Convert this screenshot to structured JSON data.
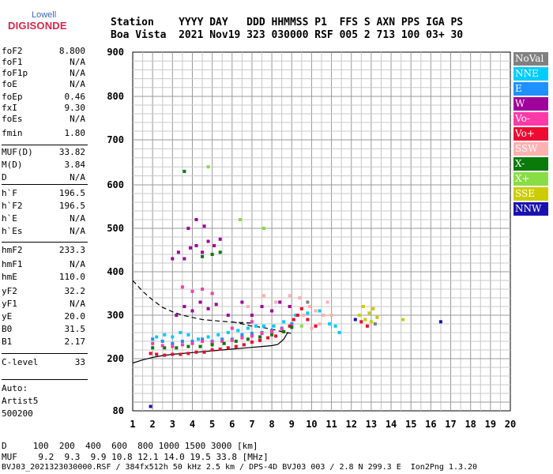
{
  "logo": {
    "top": "Lowell",
    "bottom": "DIGISONDE"
  },
  "header": {
    "line1": "Station    YYYY DAY   DDD HHMMSS P1  FFS S AXN PPS IGA PS",
    "line2": "Boa Vista  2021 Nov19 323 030000 RSF 005 2 713 100 03+ 30"
  },
  "params": [
    {
      "label": "foF2",
      "value": "8.800"
    },
    {
      "label": "foF1",
      "value": "N/A"
    },
    {
      "label": "foF1p",
      "value": "N/A"
    },
    {
      "label": "foE",
      "value": "N/A"
    },
    {
      "label": "foEp",
      "value": "0.46"
    },
    {
      "label": "fxI",
      "value": "9.30"
    },
    {
      "label": "foEs",
      "value": "N/A"
    },
    {
      "label": "fmin",
      "value": "1.80"
    },
    {
      "label": "MUF(D)",
      "value": "33.82"
    },
    {
      "label": "M(D)",
      "value": "3.84"
    },
    {
      "label": "D",
      "value": "N/A"
    },
    {
      "label": "h`F",
      "value": "196.5"
    },
    {
      "label": "h`F2",
      "value": "196.5"
    },
    {
      "label": "h`E",
      "value": "N/A"
    },
    {
      "label": "h`Es",
      "value": "N/A"
    },
    {
      "label": "hmF2",
      "value": "233.3"
    },
    {
      "label": "hmF1",
      "value": "N/A"
    },
    {
      "label": "hmE",
      "value": "110.0"
    },
    {
      "label": "yF2",
      "value": "32.2"
    },
    {
      "label": "yF1",
      "value": "N/A"
    },
    {
      "label": "yE",
      "value": "20.0"
    },
    {
      "label": "B0",
      "value": "31.5"
    },
    {
      "label": "B1",
      "value": "2.17"
    },
    {
      "label": "C-level",
      "value": "33"
    }
  ],
  "auto": {
    "line1": "Auto:",
    "line2": "Artist5",
    "line3": "500200"
  },
  "footer": {
    "d_line": "D     100  200  400  600  800 1000 1500 3000 [km]",
    "muf_line": "MUF    9.2  9.3  9.9 10.8 12.1 14.0 19.5 33.8 [MHz]",
    "file_line": "BVJ03_2021323030000.RSF / 384fx512h 50 kHz 2.5 km / DPS-4D BVJ03 003 / 2.8 N 299.3 E  Ion2Png 1.3.20"
  },
  "legend": [
    {
      "label": "NoVal",
      "color": "#808080"
    },
    {
      "label": "NNE",
      "color": "#00ccff"
    },
    {
      "label": "E",
      "color": "#1e90ff"
    },
    {
      "label": "W",
      "color": "#a0009c"
    },
    {
      "label": "Vo-",
      "color": "#ff3aa8"
    },
    {
      "label": "Vo+",
      "color": "#ee0a30"
    },
    {
      "label": "SSW",
      "color": "#ffb0b0"
    },
    {
      "label": "X-",
      "color": "#0a7a0a"
    },
    {
      "label": "X+",
      "color": "#88dd44"
    },
    {
      "label": "SSE",
      "color": "#cccc00"
    },
    {
      "label": "NNW",
      "color": "#1a12b0"
    }
  ],
  "chart_data": {
    "type": "scatter",
    "x_ticks": [
      "1",
      "2",
      "3",
      "4",
      "5",
      "6",
      "7",
      "8",
      "9",
      "10",
      "11",
      "12",
      "13",
      "14",
      "15",
      "16",
      "17",
      "18",
      "19",
      "20"
    ],
    "y_ticks": [
      "80",
      "200",
      "300",
      "400",
      "500",
      "600",
      "700",
      "800",
      "900"
    ],
    "xlim": [
      1,
      20
    ],
    "ylim": [
      80,
      900
    ],
    "grid": true,
    "legend_position": "right",
    "series": [
      {
        "name": "NNE",
        "points": [
          [
            2.2,
            250
          ],
          [
            2.6,
            255
          ],
          [
            3.0,
            250
          ],
          [
            3.4,
            260
          ],
          [
            3.8,
            255
          ],
          [
            4.3,
            245
          ],
          [
            4.8,
            250
          ],
          [
            5.3,
            255
          ],
          [
            5.8,
            260
          ],
          [
            6.3,
            265
          ],
          [
            6.8,
            270
          ],
          [
            7.2,
            275
          ],
          [
            7.6,
            275
          ],
          [
            8.1,
            275
          ],
          [
            8.6,
            285
          ],
          [
            9.2,
            300
          ],
          [
            9.8,
            305
          ],
          [
            10.4,
            310
          ],
          [
            10.9,
            280
          ],
          [
            11.2,
            275
          ],
          [
            11.4,
            260
          ]
        ]
      },
      {
        "name": "E",
        "points": [
          [
            2.0,
            245
          ],
          [
            2.5,
            240
          ],
          [
            3.0,
            235
          ],
          [
            3.5,
            240
          ],
          [
            4.0,
            240
          ],
          [
            4.5,
            245
          ],
          [
            5.0,
            240
          ],
          [
            5.5,
            245
          ],
          [
            6.0,
            245
          ],
          [
            6.5,
            255
          ],
          [
            7.0,
            258
          ],
          [
            7.5,
            260
          ],
          [
            8.0,
            265
          ],
          [
            8.5,
            270
          ],
          [
            9.0,
            280
          ]
        ]
      },
      {
        "name": "W",
        "points": [
          [
            3.0,
            430
          ],
          [
            3.3,
            445
          ],
          [
            3.6,
            430
          ],
          [
            3.9,
            455
          ],
          [
            4.2,
            460
          ],
          [
            4.5,
            445
          ],
          [
            4.8,
            470
          ],
          [
            5.1,
            460
          ],
          [
            5.4,
            475
          ],
          [
            3.2,
            300
          ],
          [
            3.6,
            320
          ],
          [
            4.0,
            310
          ],
          [
            4.4,
            330
          ],
          [
            4.8,
            315
          ],
          [
            5.2,
            325
          ],
          [
            5.8,
            300
          ],
          [
            3.8,
            500
          ],
          [
            4.2,
            520
          ],
          [
            4.6,
            505
          ],
          [
            6.5,
            330
          ],
          [
            7.0,
            300
          ],
          [
            7.5,
            320
          ],
          [
            8.0,
            310
          ],
          [
            8.4,
            330
          ],
          [
            8.9,
            320
          ]
        ]
      },
      {
        "name": "Vo-",
        "points": [
          [
            2.0,
            235
          ],
          [
            2.5,
            230
          ],
          [
            3.0,
            228
          ],
          [
            3.5,
            232
          ],
          [
            4.0,
            235
          ],
          [
            4.5,
            240
          ],
          [
            5.0,
            238
          ],
          [
            5.5,
            240
          ],
          [
            6.0,
            242
          ],
          [
            6.5,
            248
          ],
          [
            7.0,
            252
          ],
          [
            7.5,
            258
          ],
          [
            8.0,
            262
          ],
          [
            8.5,
            268
          ],
          [
            9.0,
            275
          ],
          [
            3.5,
            365
          ],
          [
            4.0,
            355
          ],
          [
            4.5,
            360
          ],
          [
            5.0,
            350
          ],
          [
            6.0,
            270
          ],
          [
            7.0,
            285
          ]
        ]
      },
      {
        "name": "Vo+",
        "points": [
          [
            1.9,
            212
          ],
          [
            2.2,
            210
          ],
          [
            2.6,
            208
          ],
          [
            3.0,
            210
          ],
          [
            3.4,
            210
          ],
          [
            3.8,
            212
          ],
          [
            4.2,
            215
          ],
          [
            4.6,
            215
          ],
          [
            5.0,
            220
          ],
          [
            5.4,
            222
          ],
          [
            5.8,
            225
          ],
          [
            6.2,
            228
          ],
          [
            6.6,
            232
          ],
          [
            7.0,
            238
          ],
          [
            7.4,
            242
          ],
          [
            7.8,
            248
          ],
          [
            8.2,
            252
          ],
          [
            8.6,
            262
          ],
          [
            8.9,
            275
          ],
          [
            9.1,
            290
          ],
          [
            9.3,
            300
          ],
          [
            9.5,
            315
          ],
          [
            9.8,
            290
          ],
          [
            10.2,
            275
          ],
          [
            12.5,
            285
          ],
          [
            12.8,
            275
          ]
        ]
      },
      {
        "name": "SSW",
        "points": [
          [
            9.6,
            300
          ],
          [
            9.9,
            320
          ],
          [
            10.2,
            310
          ],
          [
            10.4,
            280
          ],
          [
            10.6,
            300
          ],
          [
            10.8,
            330
          ],
          [
            11.0,
            300
          ],
          [
            10.0,
            270
          ],
          [
            9.4,
            340
          ],
          [
            8.9,
            345
          ],
          [
            8.2,
            330
          ],
          [
            7.6,
            345
          ],
          [
            6.8,
            320
          ]
        ]
      },
      {
        "name": "X-",
        "points": [
          [
            2.0,
            225
          ],
          [
            2.6,
            225
          ],
          [
            3.2,
            225
          ],
          [
            3.8,
            228
          ],
          [
            4.4,
            228
          ],
          [
            5.0,
            232
          ],
          [
            5.6,
            235
          ],
          [
            6.2,
            240
          ],
          [
            6.8,
            245
          ],
          [
            7.4,
            250
          ],
          [
            8.0,
            255
          ],
          [
            8.6,
            262
          ],
          [
            9.0,
            272
          ],
          [
            4.5,
            435
          ],
          [
            5.0,
            440
          ],
          [
            5.4,
            445
          ],
          [
            3.6,
            630
          ]
        ]
      },
      {
        "name": "X+",
        "points": [
          [
            6.4,
            520
          ],
          [
            7.6,
            500
          ],
          [
            4.8,
            640
          ],
          [
            9.5,
            275
          ]
        ]
      },
      {
        "name": "SSE",
        "points": [
          [
            12.4,
            300
          ],
          [
            12.7,
            290
          ],
          [
            12.9,
            305
          ],
          [
            13.1,
            315
          ],
          [
            13.3,
            295
          ],
          [
            12.6,
            320
          ],
          [
            13.0,
            285
          ],
          [
            14.6,
            290
          ]
        ]
      },
      {
        "name": "NNW",
        "points": [
          [
            16.5,
            285
          ],
          [
            1.9,
            90
          ],
          [
            12.2,
            290
          ]
        ]
      },
      {
        "name": "NoVal",
        "points": [
          [
            9.8,
            330
          ],
          [
            13.2,
            280
          ]
        ]
      }
    ],
    "traces": [
      {
        "name": "dashed",
        "points": [
          [
            1,
            380
          ],
          [
            1.5,
            355
          ],
          [
            2,
            335
          ],
          [
            2.5,
            318
          ],
          [
            3,
            308
          ],
          [
            3.5,
            300
          ],
          [
            4,
            295
          ],
          [
            4.5,
            290
          ],
          [
            5,
            288
          ],
          [
            5.5,
            286
          ],
          [
            6,
            284
          ],
          [
            6.5,
            283
          ],
          [
            7,
            282
          ]
        ]
      },
      {
        "name": "solid",
        "points": [
          [
            1,
            190
          ],
          [
            1.5,
            197
          ],
          [
            2,
            203
          ],
          [
            2.5,
            207
          ],
          [
            3,
            210
          ],
          [
            3.5,
            212
          ],
          [
            4,
            214
          ],
          [
            4.5,
            216
          ],
          [
            5,
            218
          ],
          [
            5.5,
            220
          ],
          [
            6,
            222
          ],
          [
            6.5,
            224
          ],
          [
            7,
            226
          ],
          [
            7.5,
            228
          ],
          [
            8,
            230
          ],
          [
            8.3,
            233
          ],
          [
            8.6,
            245
          ],
          [
            8.8,
            260
          ]
        ]
      },
      {
        "name": "dashed2",
        "points": [
          [
            6,
            285
          ],
          [
            6.5,
            280
          ],
          [
            7,
            275
          ],
          [
            7.5,
            272
          ],
          [
            8,
            268
          ],
          [
            8.5,
            262
          ],
          [
            9,
            258
          ]
        ]
      }
    ]
  }
}
